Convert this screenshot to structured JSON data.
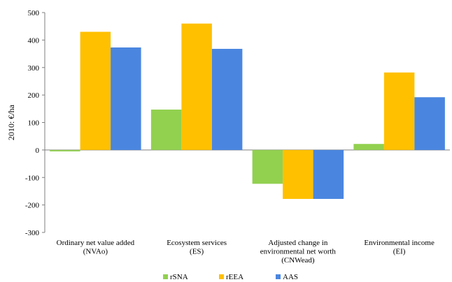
{
  "chart_data": {
    "type": "bar",
    "title": "",
    "ylabel": "2010: €/ha",
    "xlabel": "",
    "ylim": [
      -300,
      500
    ],
    "yticks": [
      500,
      400,
      300,
      200,
      100,
      0,
      -100,
      -200,
      -300
    ],
    "ytick_labels": [
      "500",
      "400",
      "300",
      "200",
      "100",
      "0",
      "-100",
      "-200",
      "-300"
    ],
    "categories": [
      [
        "Ordinary net value added",
        "(NVAo)"
      ],
      [
        "Ecosystem services",
        "(ES)"
      ],
      [
        "Adjusted change in",
        "environmental net worth",
        "(CNWead)"
      ],
      [
        "Environmental income",
        "(EI)"
      ]
    ],
    "series": [
      {
        "name": "rSNA",
        "color": "#92d050",
        "values": [
          -5,
          147,
          -123,
          22
        ]
      },
      {
        "name": "rEEA",
        "color": "#ffc000",
        "values": [
          430,
          460,
          -178,
          282
        ]
      },
      {
        "name": "AAS",
        "color": "#4a86e0",
        "values": [
          373,
          368,
          -178,
          192
        ]
      }
    ],
    "legend_position": "bottom",
    "grid": false
  }
}
